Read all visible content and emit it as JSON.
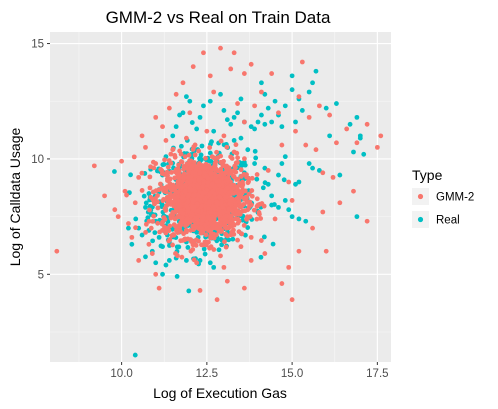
{
  "chart_data": {
    "type": "scatter",
    "title": "GMM-2 vs Real on Train Data",
    "xlabel": "Log of Execution Gas",
    "ylabel": "Log of Calldata Usage",
    "xlim": [
      7.9,
      17.9
    ],
    "ylim": [
      1.2,
      15.5
    ],
    "x_ticks": [
      {
        "value": 10,
        "label": "10.0"
      },
      {
        "value": 12.5,
        "label": "12.5"
      },
      {
        "value": 15,
        "label": "15.0"
      },
      {
        "value": 17.5,
        "label": "17.5"
      }
    ],
    "y_ticks": [
      {
        "value": 5,
        "label": "5"
      },
      {
        "value": 10,
        "label": "10"
      },
      {
        "value": 15,
        "label": "15"
      }
    ],
    "grid": true,
    "legend": {
      "title": "Type",
      "position": "right"
    },
    "series": [
      {
        "name": "Real",
        "color": "#00BFC4",
        "cluster": {
          "cx": 12.4,
          "cy": 8.3,
          "sx": 0.75,
          "sy": 1.0,
          "n": 700
        },
        "points": [
          [
            10.4,
            1.5
          ],
          [
            10.3,
            6.3
          ],
          [
            10.5,
            7.0
          ],
          [
            10.6,
            6.7
          ],
          [
            10.8,
            6.9
          ],
          [
            10.9,
            7.6
          ],
          [
            10.9,
            6.0
          ],
          [
            11.0,
            5.5
          ],
          [
            11.2,
            5.0
          ],
          [
            11.3,
            5.4
          ],
          [
            11.4,
            5.6
          ],
          [
            11.6,
            5.7
          ],
          [
            11.9,
            5.6
          ],
          [
            12.3,
            5.6
          ],
          [
            12.6,
            5.5
          ],
          [
            12.7,
            5.3
          ],
          [
            11.9,
            6.4
          ],
          [
            11.5,
            11.0
          ],
          [
            11.6,
            11.4
          ],
          [
            11.7,
            11.9
          ],
          [
            11.8,
            12.0
          ],
          [
            11.9,
            12.7
          ],
          [
            12.0,
            12.5
          ],
          [
            12.2,
            11.3
          ],
          [
            12.3,
            11.8
          ],
          [
            12.4,
            12.3
          ],
          [
            12.6,
            12.5
          ],
          [
            12.7,
            11.2
          ],
          [
            12.9,
            12.8
          ],
          [
            13.0,
            12.1
          ],
          [
            13.1,
            11.7
          ],
          [
            13.2,
            11.5
          ],
          [
            13.3,
            11.8
          ],
          [
            13.4,
            12.0
          ],
          [
            13.5,
            12.6
          ],
          [
            13.6,
            11.6
          ],
          [
            13.8,
            11.4
          ],
          [
            14.0,
            11.6
          ],
          [
            14.1,
            11.9
          ],
          [
            14.2,
            12.8
          ],
          [
            14.3,
            12.2
          ],
          [
            14.4,
            11.6
          ],
          [
            14.5,
            12.5
          ],
          [
            14.6,
            11.9
          ],
          [
            14.7,
            11.4
          ],
          [
            14.8,
            12.3
          ],
          [
            15.0,
            13.0
          ],
          [
            15.2,
            12.6
          ],
          [
            15.3,
            12.1
          ],
          [
            15.5,
            12.9
          ],
          [
            15.6,
            13.3
          ],
          [
            15.7,
            13.8
          ],
          [
            15.0,
            13.6
          ],
          [
            15.1,
            11.6
          ],
          [
            14.2,
            11.5
          ],
          [
            13.3,
            10.8
          ],
          [
            13.5,
            10.9
          ],
          [
            13.7,
            10.4
          ],
          [
            13.9,
            9.8
          ],
          [
            14.2,
            9.6
          ],
          [
            14.3,
            8.9
          ],
          [
            14.4,
            8.4
          ],
          [
            14.4,
            8.0
          ],
          [
            14.6,
            9.3
          ],
          [
            14.6,
            7.9
          ],
          [
            14.7,
            9.8
          ],
          [
            14.8,
            8.2
          ],
          [
            14.9,
            7.8
          ],
          [
            15.0,
            7.5
          ],
          [
            15.1,
            8.9
          ],
          [
            15.2,
            7.4
          ],
          [
            15.4,
            7.3
          ],
          [
            15.6,
            9.6
          ],
          [
            15.8,
            9.5
          ],
          [
            16.0,
            12.2
          ],
          [
            16.1,
            11.0
          ],
          [
            16.3,
            12.4
          ],
          [
            16.4,
            9.3
          ],
          [
            16.7,
            11.5
          ],
          [
            16.8,
            10.3
          ],
          [
            16.9,
            7.5
          ],
          [
            16.9,
            11.8
          ],
          [
            17.0,
            11.0
          ],
          [
            17.0,
            10.9
          ],
          [
            17.1,
            10.2
          ],
          [
            15.5,
            9.8
          ],
          [
            15.2,
            9.0
          ],
          [
            14.1,
            13.3
          ],
          [
            13.9,
            11.3
          ],
          [
            14.8,
            10.1
          ],
          [
            13.8,
            8.1
          ],
          [
            13.6,
            9.4
          ],
          [
            10.2,
            7.0
          ],
          [
            10.7,
            7.9
          ],
          [
            10.8,
            8.5
          ],
          [
            11.0,
            7.3
          ],
          [
            11.1,
            6.6
          ],
          [
            11.2,
            9.3
          ],
          [
            11.3,
            10.1
          ],
          [
            11.2,
            6.2
          ],
          [
            11.4,
            6.4
          ],
          [
            12.8,
            6.6
          ]
        ]
      },
      {
        "name": "GMM-2",
        "color": "#F8766D",
        "cluster": {
          "cx": 12.4,
          "cy": 8.3,
          "sx": 0.6,
          "sy": 0.85,
          "n": 1400
        },
        "points": [
          [
            8.1,
            6.0
          ],
          [
            9.2,
            9.7
          ],
          [
            9.8,
            7.8
          ],
          [
            9.9,
            7.5
          ],
          [
            10.0,
            9.9
          ],
          [
            10.1,
            8.6
          ],
          [
            10.2,
            7.2
          ],
          [
            10.4,
            8.1
          ],
          [
            10.5,
            9.2
          ],
          [
            10.7,
            10.5
          ],
          [
            10.8,
            6.3
          ],
          [
            11.0,
            9.8
          ],
          [
            11.0,
            5.0
          ],
          [
            11.1,
            4.4
          ],
          [
            11.2,
            11.4
          ],
          [
            11.6,
            12.8
          ],
          [
            11.8,
            13.3
          ],
          [
            12.1,
            14.0
          ],
          [
            12.4,
            14.6
          ],
          [
            12.6,
            13.6
          ],
          [
            12.9,
            14.8
          ],
          [
            13.2,
            13.9
          ],
          [
            13.3,
            14.6
          ],
          [
            13.6,
            13.7
          ],
          [
            13.8,
            14.1
          ],
          [
            13.1,
            4.7
          ],
          [
            12.8,
            3.9
          ],
          [
            12.3,
            4.3
          ],
          [
            13.0,
            5.3
          ],
          [
            13.6,
            4.4
          ],
          [
            13.8,
            5.6
          ],
          [
            14.2,
            5.9
          ],
          [
            14.7,
            4.6
          ],
          [
            14.9,
            5.3
          ],
          [
            15.0,
            3.9
          ],
          [
            15.2,
            6.0
          ],
          [
            15.6,
            7.0
          ],
          [
            15.9,
            7.7
          ],
          [
            16.1,
            11.9
          ],
          [
            16.3,
            10.7
          ],
          [
            16.6,
            11.3
          ],
          [
            16.9,
            10.7
          ],
          [
            17.2,
            11.5
          ],
          [
            17.5,
            10.5
          ],
          [
            17.6,
            11.0
          ],
          [
            17.2,
            7.3
          ],
          [
            16.8,
            8.6
          ],
          [
            15.3,
            14.2
          ],
          [
            15.5,
            11.8
          ],
          [
            15.4,
            10.6
          ],
          [
            15.9,
            9.4
          ],
          [
            15.7,
            10.4
          ],
          [
            14.4,
            13.7
          ],
          [
            14.1,
            12.9
          ],
          [
            13.3,
            10.3
          ],
          [
            13.6,
            11.6
          ],
          [
            11.4,
            12.2
          ],
          [
            11.5,
            10.4
          ],
          [
            11.7,
            7.0
          ],
          [
            13.8,
            6.6
          ],
          [
            14.5,
            7.4
          ],
          [
            14.0,
            8.0
          ],
          [
            14.3,
            9.5
          ],
          [
            14.9,
            9.0
          ],
          [
            15.1,
            11.2
          ],
          [
            10.3,
            6.6
          ],
          [
            10.5,
            5.6
          ],
          [
            10.9,
            5.9
          ],
          [
            12.2,
            5.5
          ],
          [
            12.9,
            5.8
          ],
          [
            13.5,
            6.2
          ],
          [
            11.3,
            10.8
          ],
          [
            11.9,
            10.9
          ],
          [
            12.5,
            11.2
          ],
          [
            13.0,
            11.0
          ],
          [
            13.9,
            12.3
          ],
          [
            14.6,
            12.0
          ],
          [
            15.2,
            12.7
          ],
          [
            15.8,
            12.3
          ],
          [
            16.2,
            9.2
          ],
          [
            16.4,
            8.1
          ],
          [
            15.0,
            8.2
          ],
          [
            14.7,
            10.6
          ],
          [
            13.4,
            12.4
          ],
          [
            12.0,
            12.0
          ],
          [
            12.7,
            12.9
          ],
          [
            11.0,
            11.8
          ],
          [
            10.6,
            11.0
          ],
          [
            9.5,
            8.4
          ],
          [
            16.0,
            6.0
          ]
        ]
      }
    ]
  }
}
